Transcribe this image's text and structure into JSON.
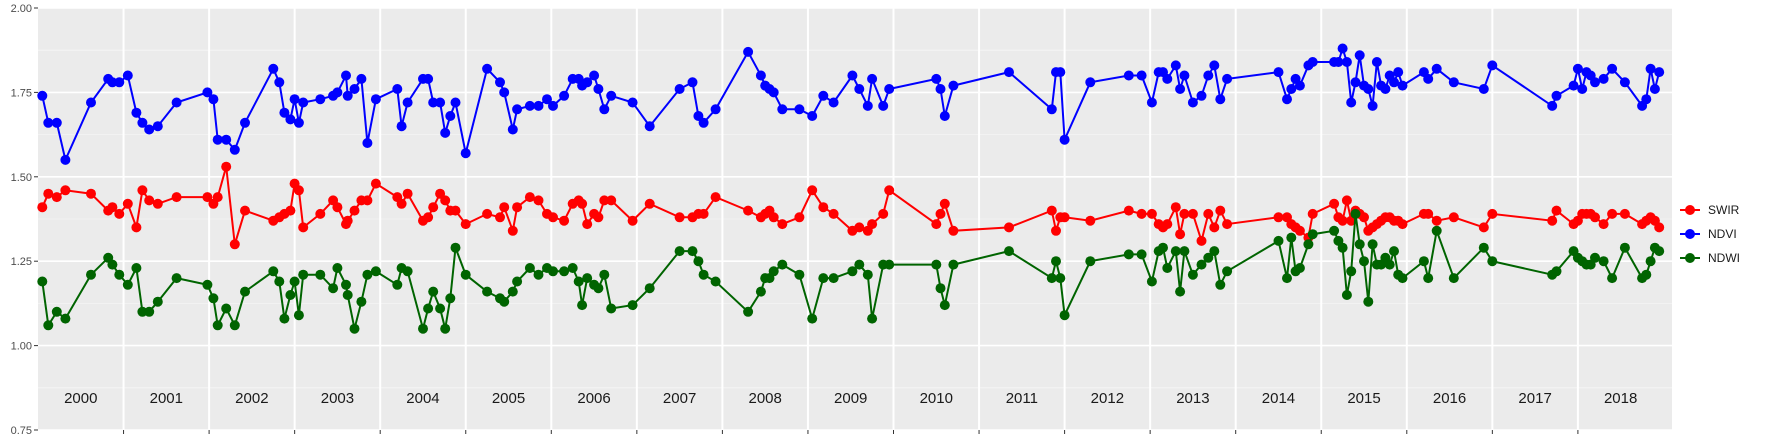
{
  "chart_data": {
    "type": "line",
    "title": "",
    "xlabel": "",
    "ylabel": "",
    "ylim": [
      0.75,
      2.0
    ],
    "yticks": [
      "0.75",
      "1.00",
      "1.25",
      "1.50",
      "1.75",
      "2.00"
    ],
    "xlim": [
      2000.0,
      2019.1
    ],
    "x_unit": "decimal year",
    "years": [
      "2000",
      "2001",
      "2002",
      "2003",
      "2004",
      "2005",
      "2006",
      "2007",
      "2008",
      "2009",
      "2010",
      "2011",
      "2012",
      "2013",
      "2014",
      "2015",
      "2016",
      "2017",
      "2018"
    ],
    "grid": true,
    "legend_position": "right",
    "x": [
      2000.05,
      2000.12,
      2000.22,
      2000.32,
      2000.62,
      2000.82,
      2000.87,
      2000.95,
      2001.05,
      2001.15,
      2001.22,
      2001.3,
      2001.4,
      2001.62,
      2001.98,
      2002.05,
      2002.1,
      2002.2,
      2002.3,
      2002.42,
      2002.75,
      2002.82,
      2002.88,
      2002.95,
      2003.0,
      2003.05,
      2003.1,
      2003.3,
      2003.45,
      2003.5,
      2003.6,
      2003.62,
      2003.7,
      2003.78,
      2003.85,
      2003.95,
      2004.2,
      2004.25,
      2004.32,
      2004.5,
      2004.56,
      2004.62,
      2004.7,
      2004.76,
      2004.82,
      2004.88,
      2005.0,
      2005.25,
      2005.4,
      2005.45,
      2005.55,
      2005.6,
      2005.75,
      2005.85,
      2005.95,
      2006.02,
      2006.15,
      2006.25,
      2006.32,
      2006.36,
      2006.42,
      2006.5,
      2006.55,
      2006.62,
      2006.7,
      2006.95,
      2007.15,
      2007.5,
      2007.65,
      2007.72,
      2007.78,
      2007.92,
      2008.3,
      2008.45,
      2008.5,
      2008.55,
      2008.6,
      2008.7,
      2008.9,
      2009.05,
      2009.18,
      2009.3,
      2009.52,
      2009.6,
      2009.7,
      2009.75,
      2009.88,
      2009.95
    ],
    "series": [
      {
        "name": "SWIR",
        "color": "#ff0000",
        "values": [
          1.41,
          1.45,
          1.44,
          1.46,
          1.45,
          1.4,
          1.41,
          1.39,
          1.42,
          1.35,
          1.46,
          1.43,
          1.42,
          1.44,
          1.44,
          1.42,
          1.44,
          1.53,
          1.3,
          1.4,
          1.37,
          1.38,
          1.39,
          1.4,
          1.48,
          1.46,
          1.35,
          1.39,
          1.43,
          1.41,
          1.36,
          1.37,
          1.4,
          1.43,
          1.43,
          1.48,
          1.44,
          1.42,
          1.45,
          1.37,
          1.38,
          1.41,
          1.45,
          1.43,
          1.4,
          1.4,
          1.36,
          1.39,
          1.38,
          1.41,
          1.34,
          1.41,
          1.44,
          1.43,
          1.39,
          1.38,
          1.37,
          1.42,
          1.43,
          1.42,
          1.36,
          1.39,
          1.38,
          1.43,
          1.43,
          1.37,
          1.42,
          1.38,
          1.38,
          1.39,
          1.39,
          1.44,
          1.4,
          1.38,
          1.39,
          1.4,
          1.38,
          1.36,
          1.38,
          1.46,
          1.41,
          1.39,
          1.34,
          1.35,
          1.34,
          1.36,
          1.39,
          1.46
        ]
      },
      {
        "name": "NDVI",
        "color": "#0000ff",
        "values": [
          1.74,
          1.66,
          1.66,
          1.55,
          1.72,
          1.79,
          1.78,
          1.78,
          1.8,
          1.69,
          1.66,
          1.64,
          1.65,
          1.72,
          1.75,
          1.73,
          1.61,
          1.61,
          1.58,
          1.66,
          1.82,
          1.78,
          1.69,
          1.67,
          1.73,
          1.66,
          1.72,
          1.73,
          1.74,
          1.75,
          1.8,
          1.74,
          1.76,
          1.79,
          1.6,
          1.73,
          1.76,
          1.65,
          1.72,
          1.79,
          1.79,
          1.72,
          1.72,
          1.63,
          1.68,
          1.72,
          1.57,
          1.82,
          1.78,
          1.75,
          1.64,
          1.7,
          1.71,
          1.71,
          1.73,
          1.71,
          1.74,
          1.79,
          1.79,
          1.77,
          1.78,
          1.8,
          1.76,
          1.7,
          1.74,
          1.72,
          1.65,
          1.76,
          1.78,
          1.68,
          1.66,
          1.7,
          1.87,
          1.8,
          1.77,
          1.76,
          1.75,
          1.7,
          1.7,
          1.68,
          1.74,
          1.72,
          1.8,
          1.76,
          1.71,
          1.79,
          1.71,
          1.76
        ]
      },
      {
        "name": "NDWI",
        "color": "#006400",
        "values": [
          1.19,
          1.06,
          1.1,
          1.08,
          1.21,
          1.26,
          1.24,
          1.21,
          1.18,
          1.23,
          1.1,
          1.1,
          1.13,
          1.2,
          1.18,
          1.14,
          1.06,
          1.11,
          1.06,
          1.16,
          1.22,
          1.19,
          1.08,
          1.15,
          1.19,
          1.09,
          1.21,
          1.21,
          1.17,
          1.23,
          1.18,
          1.15,
          1.05,
          1.13,
          1.21,
          1.22,
          1.18,
          1.23,
          1.22,
          1.05,
          1.11,
          1.16,
          1.11,
          1.05,
          1.14,
          1.29,
          1.21,
          1.16,
          1.14,
          1.13,
          1.16,
          1.19,
          1.23,
          1.21,
          1.23,
          1.22,
          1.22,
          1.23,
          1.19,
          1.12,
          1.2,
          1.18,
          1.17,
          1.21,
          1.11,
          1.12,
          1.17,
          1.28,
          1.28,
          1.25,
          1.21,
          1.19,
          1.1,
          1.16,
          1.2,
          1.2,
          1.22,
          1.24,
          1.21,
          1.08,
          1.2,
          1.2,
          1.22,
          1.24,
          1.21,
          1.08,
          1.24,
          1.24
        ]
      }
    ]
  },
  "chart_data_extra_years": {
    "x": [
      2010.5,
      2010.55,
      2010.6,
      2010.7,
      2011.35,
      2011.85,
      2011.9,
      2011.95,
      2012.0,
      2012.3,
      2012.75,
      2012.9,
      2013.02,
      2013.1,
      2013.15,
      2013.2,
      2013.3,
      2013.35,
      2013.4,
      2013.5,
      2013.6,
      2013.68,
      2013.75,
      2013.82,
      2013.9,
      2014.5,
      2014.6,
      2014.65,
      2014.7,
      2014.75,
      2014.85,
      2014.9,
      2015.15,
      2015.2,
      2015.25,
      2015.3,
      2015.35,
      2015.4,
      2015.45,
      2015.5,
      2015.55,
      2015.6,
      2015.65,
      2015.7,
      2015.75,
      2015.8,
      2015.85,
      2015.9,
      2015.95,
      2016.2,
      2016.25,
      2016.35,
      2016.55,
      2016.9,
      2017.0,
      2017.7,
      2017.75,
      2017.95,
      2018.0,
      2018.05,
      2018.1,
      2018.15,
      2018.2,
      2018.3,
      2018.4,
      2018.55,
      2018.75,
      2018.8,
      2018.85,
      2018.9,
      2018.95
    ],
    "swir": [
      1.36,
      1.39,
      1.42,
      1.34,
      1.35,
      1.4,
      1.34,
      1.38,
      1.38,
      1.37,
      1.4,
      1.39,
      1.39,
      1.36,
      1.35,
      1.36,
      1.41,
      1.33,
      1.39,
      1.39,
      1.31,
      1.39,
      1.35,
      1.4,
      1.36,
      1.38,
      1.38,
      1.36,
      1.35,
      1.34,
      1.32,
      1.39,
      1.42,
      1.38,
      1.37,
      1.43,
      1.37,
      1.4,
      1.39,
      1.38,
      1.34,
      1.35,
      1.36,
      1.37,
      1.38,
      1.38,
      1.37,
      1.37,
      1.36,
      1.39,
      1.39,
      1.37,
      1.38,
      1.35,
      1.39,
      1.37,
      1.4,
      1.36,
      1.37,
      1.39,
      1.39,
      1.39,
      1.38,
      1.36,
      1.39,
      1.39,
      1.36,
      1.37,
      1.38,
      1.37,
      1.35
    ],
    "ndvi": [
      1.79,
      1.76,
      1.68,
      1.77,
      1.81,
      1.7,
      1.81,
      1.81,
      1.61,
      1.78,
      1.8,
      1.8,
      1.72,
      1.81,
      1.81,
      1.79,
      1.83,
      1.76,
      1.8,
      1.72,
      1.74,
      1.8,
      1.83,
      1.73,
      1.79,
      1.81,
      1.73,
      1.76,
      1.79,
      1.77,
      1.83,
      1.84,
      1.84,
      1.84,
      1.88,
      1.84,
      1.72,
      1.78,
      1.86,
      1.77,
      1.76,
      1.71,
      1.84,
      1.77,
      1.76,
      1.8,
      1.78,
      1.81,
      1.77,
      1.81,
      1.79,
      1.82,
      1.78,
      1.76,
      1.83,
      1.71,
      1.74,
      1.77,
      1.82,
      1.76,
      1.81,
      1.8,
      1.78,
      1.79,
      1.82,
      1.78,
      1.71,
      1.73,
      1.82,
      1.76,
      1.81
    ],
    "ndwi": [
      1.24,
      1.17,
      1.12,
      1.24,
      1.28,
      1.2,
      1.25,
      1.2,
      1.09,
      1.25,
      1.27,
      1.27,
      1.19,
      1.28,
      1.29,
      1.23,
      1.28,
      1.16,
      1.28,
      1.21,
      1.24,
      1.26,
      1.28,
      1.18,
      1.22,
      1.31,
      1.2,
      1.32,
      1.22,
      1.23,
      1.3,
      1.33,
      1.34,
      1.31,
      1.29,
      1.15,
      1.22,
      1.39,
      1.3,
      1.25,
      1.13,
      1.3,
      1.24,
      1.24,
      1.26,
      1.24,
      1.28,
      1.21,
      1.2,
      1.25,
      1.2,
      1.34,
      1.2,
      1.29,
      1.25,
      1.21,
      1.22,
      1.28,
      1.26,
      1.25,
      1.24,
      1.24,
      1.26,
      1.25,
      1.2,
      1.29,
      1.2,
      1.21,
      1.25,
      1.29,
      1.28
    ]
  }
}
